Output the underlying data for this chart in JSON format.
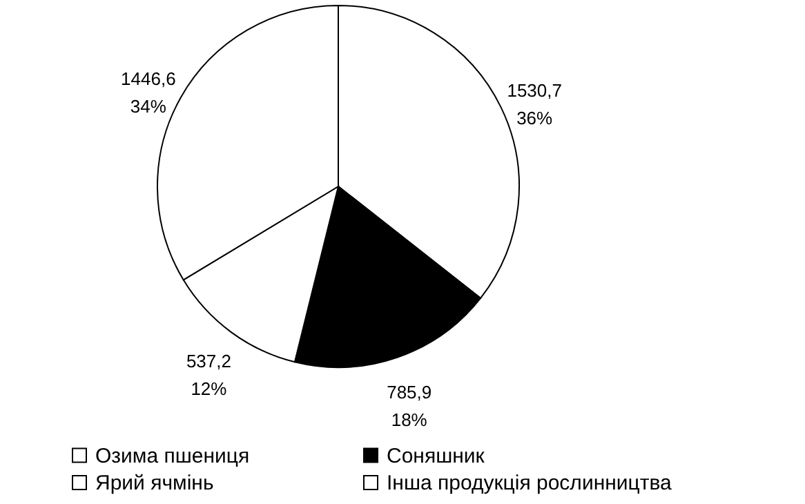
{
  "chart_data": {
    "type": "pie",
    "categories": [
      "Озима пшениця",
      "Соняшник",
      "Ярий ячмінь",
      "Інша продукція рослинництва"
    ],
    "values": [
      1530.7,
      785.9,
      537.2,
      1446.6
    ],
    "value_labels": [
      "1530,7\n36%",
      "785,9\n18%",
      "537,2\n12%",
      "1446,6\n34%"
    ],
    "colors": [
      "#ffffff",
      "#000000",
      "#ffffff",
      "#ffffff"
    ],
    "legend": "bottom"
  }
}
